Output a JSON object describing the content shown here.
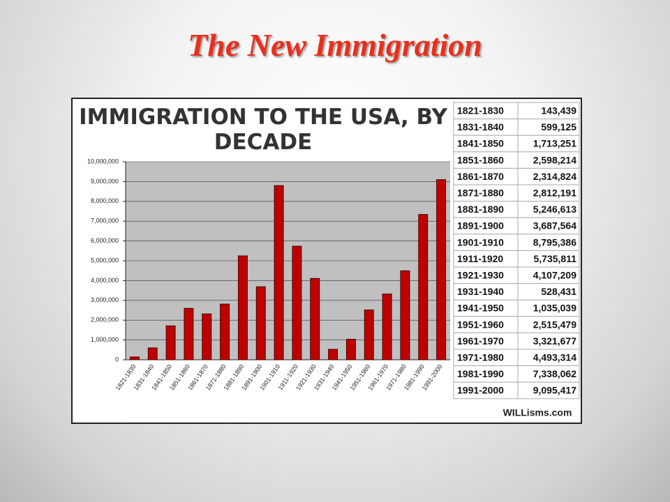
{
  "slide_title": "The New Immigration",
  "credit": "WILLisms.com",
  "chart_data": {
    "type": "bar",
    "title": "IMMIGRATION TO THE USA, BY DECADE",
    "categories": [
      "1821-1830",
      "1831-1840",
      "1841-1850",
      "1851-1860",
      "1861-1870",
      "1871-1880",
      "1881-1890",
      "1891-1900",
      "1901-1910",
      "1911-1920",
      "1921-1930",
      "1931-1940",
      "1941-1950",
      "1951-1960",
      "1961-1970",
      "1971-1980",
      "1981-1990",
      "1991-2000"
    ],
    "values": [
      143439,
      599125,
      1713251,
      2598214,
      2314824,
      2812191,
      5246613,
      3687564,
      8795386,
      5735811,
      4107209,
      528431,
      1035039,
      2515479,
      3321677,
      4493314,
      7338062,
      9095417
    ],
    "value_labels": [
      "143,439",
      "599,125",
      "1,713,251",
      "2,598,214",
      "2,314,824",
      "2,812,191",
      "5,246,613",
      "3,687,564",
      "8,795,386",
      "5,735,811",
      "4,107,209",
      "528,431",
      "1,035,039",
      "2,515,479",
      "3,321,677",
      "4,493,314",
      "7,338,062",
      "9,095,417"
    ],
    "color": "#c00000",
    "ylim": [
      0,
      10000000
    ],
    "yticks": [
      0,
      {
        "value": 1000000,
        "label": "1,000,000"
      },
      {
        "value": 2000000,
        "label": "2,000,000"
      },
      {
        "value": 3000000,
        "label": "3,000,000"
      },
      {
        "value": 4000000,
        "label": "4,000,000"
      },
      {
        "value": 5000000,
        "label": "5,000,000"
      },
      {
        "value": 6000000,
        "label": "6,000,000"
      },
      {
        "value": 7000000,
        "label": "7,000,000"
      },
      {
        "value": 8000000,
        "label": "8,000,000"
      },
      {
        "value": 9000000,
        "label": "9,000,000"
      },
      {
        "value": 10000000,
        "label": "10,000,000"
      }
    ],
    "grid": true
  }
}
